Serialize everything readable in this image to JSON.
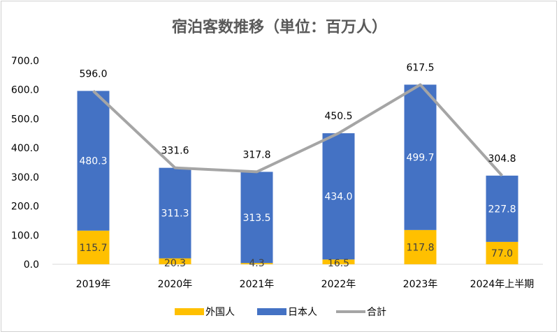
{
  "chart_data": {
    "type": "bar",
    "stacked": true,
    "title": "宿泊客数推移（単位：百万人）",
    "categories": [
      "2019年",
      "2020年",
      "2021年",
      "2022年",
      "2023年",
      "2024年上半期"
    ],
    "series": [
      {
        "name": "外国人",
        "type": "bar",
        "color": "#FFC000",
        "values": [
          115.7,
          20.3,
          4.3,
          16.5,
          117.8,
          77.0
        ]
      },
      {
        "name": "日本人",
        "type": "bar",
        "color": "#4472C4",
        "values": [
          480.3,
          311.3,
          313.5,
          434.0,
          499.7,
          227.8
        ]
      },
      {
        "name": "合計",
        "type": "line",
        "color": "#A5A5A5",
        "values": [
          596.0,
          331.6,
          317.8,
          450.5,
          617.5,
          304.8
        ]
      }
    ],
    "ylim": [
      0,
      700
    ],
    "yticks": [
      "0.0",
      "100.0",
      "200.0",
      "300.0",
      "400.0",
      "500.0",
      "600.0",
      "700.0"
    ],
    "grid": false,
    "legend": "bottom"
  }
}
